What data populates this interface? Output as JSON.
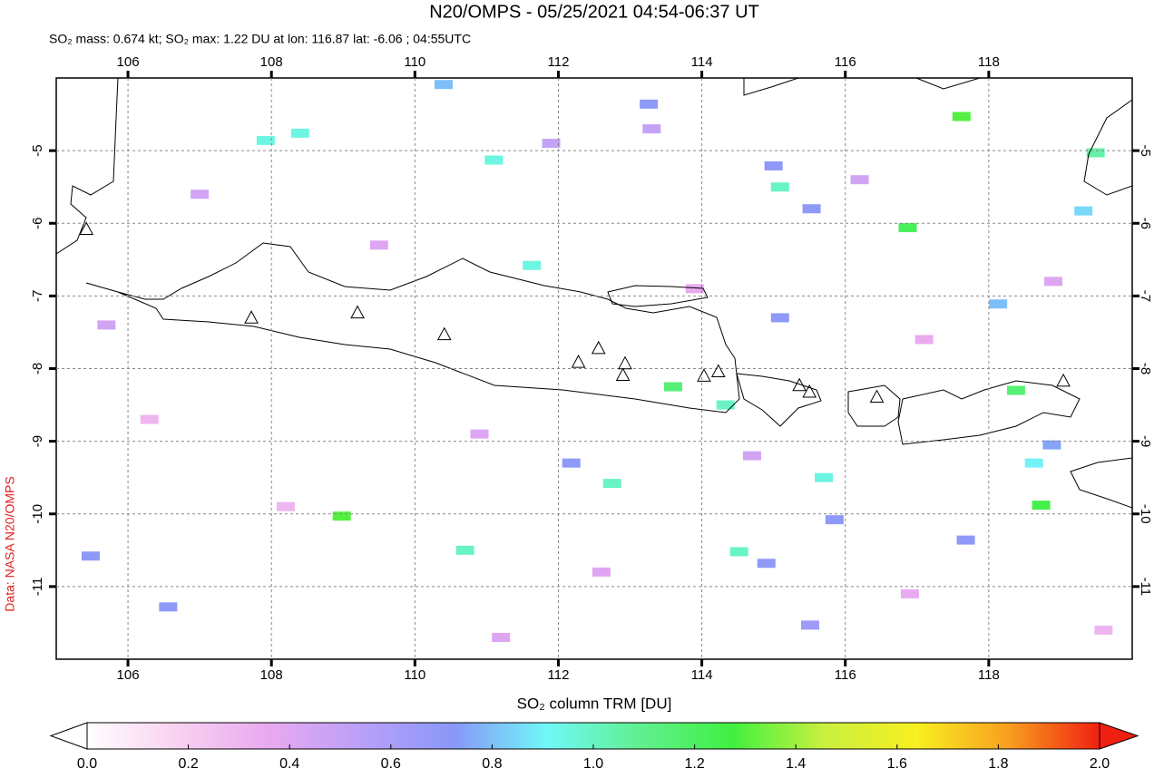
{
  "chart_data": {
    "type": "map",
    "title": "N20/OMPS - 05/25/2021 04:54-06:37 UT",
    "subtitle": "SO₂ mass: 0.674 kt; SO₂ max: 1.22 DU at lon: 116.87 lat: -6.06 ; 04:55UTC",
    "credit": "Data: NASA N20/OMPS",
    "colorbar_label": "SO₂ column TRM [DU]",
    "xlim": [
      105,
      120
    ],
    "ylim": [
      -12,
      -4
    ],
    "xticks": [
      106,
      108,
      110,
      112,
      114,
      116,
      118
    ],
    "yticks": [
      -5,
      -6,
      -7,
      -8,
      -9,
      -10,
      -11
    ],
    "grid": true,
    "clim": [
      0,
      2
    ],
    "cticks": [
      {
        "value": 0,
        "label": "0.0"
      },
      {
        "value": 0.2,
        "label": "0.2"
      },
      {
        "value": 0.4,
        "label": "0.4"
      },
      {
        "value": 0.6,
        "label": "0.6"
      },
      {
        "value": 0.8,
        "label": "0.8"
      },
      {
        "value": 1,
        "label": "1.0"
      },
      {
        "value": 1.2,
        "label": "1.2"
      },
      {
        "value": 1.4,
        "label": "1.4"
      },
      {
        "value": 1.6,
        "label": "1.6"
      },
      {
        "value": 1.8,
        "label": "1.8"
      },
      {
        "value": 2,
        "label": "2.0"
      }
    ],
    "colormap": [
      "#ffffff",
      "#f8d0f0",
      "#e8a8f0",
      "#b8a0f8",
      "#8898f8",
      "#70f8f8",
      "#60f090",
      "#40f040",
      "#c8f040",
      "#f8f020",
      "#f8a020",
      "#f02010"
    ],
    "pixels": {
      "lon": [
        115.09,
        117.62,
        116.87,
        119.49,
        111.63,
        111.1,
        113.6,
        114.33,
        115.7,
        112.75,
        110.7,
        114.52,
        118.73,
        108.98,
        118.38,
        118.63,
        110.4,
        108.4,
        115.0,
        115.53,
        115.09,
        115.85,
        115.51,
        117.68,
        118.13,
        118.88,
        114.9,
        112.18,
        107.92,
        106.56,
        105.48,
        113.26,
        119.32,
        107.0,
        109.5,
        111.9,
        113.9,
        116.2,
        118.9,
        106.3,
        110.9,
        114.7,
        117.1,
        108.2,
        112.6,
        116.9,
        105.7,
        119.6,
        111.2,
        113.3
      ],
      "lat": [
        -5.5,
        -4.53,
        -6.06,
        -5.03,
        -6.58,
        -5.13,
        -8.25,
        -8.5,
        -9.5,
        -9.58,
        -10.5,
        -10.52,
        -9.88,
        -10.03,
        -8.3,
        -9.3,
        -4.09,
        -4.76,
        -5.21,
        -5.8,
        -7.3,
        -10.08,
        -11.53,
        -10.36,
        -7.11,
        -9.05,
        -10.68,
        -9.3,
        -4.86,
        -11.28,
        -10.58,
        -4.36,
        -5.83,
        -5.6,
        -6.3,
        -4.9,
        -6.9,
        -5.4,
        -6.8,
        -8.7,
        -8.9,
        -9.2,
        -7.6,
        -9.9,
        -10.8,
        -11.1,
        -7.4,
        -11.6,
        -11.7,
        -4.7
      ],
      "values": [
        1.0,
        1.3,
        1.22,
        1.05,
        0.95,
        0.95,
        1.15,
        1.0,
        0.95,
        1.0,
        1.0,
        1.0,
        1.25,
        1.3,
        1.15,
        0.9,
        0.8,
        0.95,
        0.7,
        0.7,
        0.7,
        0.7,
        0.65,
        0.7,
        0.8,
        0.75,
        0.7,
        0.7,
        0.95,
        0.7,
        0.7,
        0.7,
        0.85,
        0.45,
        0.4,
        0.5,
        0.35,
        0.45,
        0.4,
        0.3,
        0.4,
        0.45,
        0.35,
        0.3,
        0.4,
        0.35,
        0.45,
        0.3,
        0.4,
        0.5
      ]
    },
    "volcanoes": {
      "lon": [
        105.42,
        107.72,
        109.2,
        110.41,
        112.28,
        112.56,
        112.93,
        112.9,
        114.03,
        114.23,
        115.36,
        115.5,
        116.44,
        119.04
      ],
      "lat": [
        -6.09,
        -7.31,
        -7.24,
        -7.54,
        -7.92,
        -7.73,
        -7.94,
        -8.1,
        -8.11,
        -8.05,
        -8.24,
        -8.33,
        -8.4,
        -8.18
      ]
    }
  }
}
